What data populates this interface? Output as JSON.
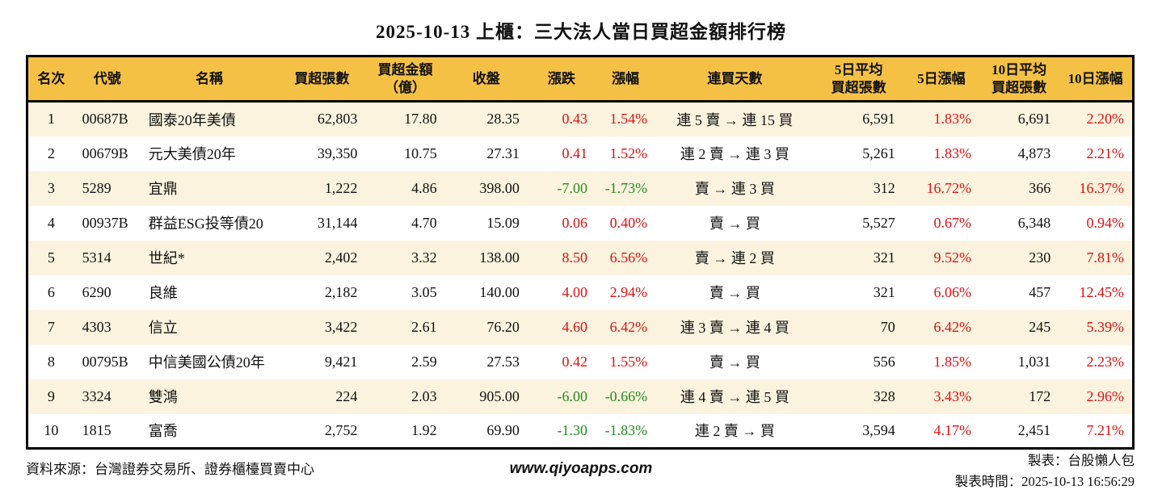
{
  "title": "2025-10-13 上櫃：三大法人當日買超金額排行榜",
  "colors": {
    "header_bg": "#F5C144",
    "row_alt_bg": "#FCF3DE",
    "up_red": "#DD1111",
    "down_green": "#1E8E1E",
    "border": "#000000"
  },
  "table": {
    "columns": [
      {
        "key": "rank",
        "label": "名次",
        "align": "center",
        "width": 58,
        "signed": false
      },
      {
        "key": "code",
        "label": "代號",
        "align": "left",
        "width": 82,
        "signed": false
      },
      {
        "key": "name",
        "label": "名稱",
        "align": "left",
        "width": 170,
        "signed": false
      },
      {
        "key": "volume",
        "label": "買超張數",
        "align": "right",
        "width": 108,
        "signed": false
      },
      {
        "key": "amount",
        "label": "買超金額\n（億）",
        "align": "right",
        "width": 98,
        "signed": false
      },
      {
        "key": "close",
        "label": "收盤",
        "align": "right",
        "width": 102,
        "signed": false
      },
      {
        "key": "change",
        "label": "漲跌",
        "align": "right",
        "width": 84,
        "signed": true
      },
      {
        "key": "change_pct",
        "label": "漲幅",
        "align": "right",
        "width": 74,
        "signed": true
      },
      {
        "key": "streak",
        "label": "連買天數",
        "align": "center",
        "width": 196,
        "signed": false
      },
      {
        "key": "avg5",
        "label": "5日平均\n買超張數",
        "align": "right",
        "width": 110,
        "signed": false
      },
      {
        "key": "pct5",
        "label": "5日漲幅",
        "align": "right",
        "width": 94,
        "signed": true
      },
      {
        "key": "avg10",
        "label": "10日平均\n買超張數",
        "align": "right",
        "width": 98,
        "signed": false
      },
      {
        "key": "pct10",
        "label": "10日漲幅",
        "align": "right",
        "width": 92,
        "signed": true
      }
    ],
    "rows": [
      {
        "rank": "1",
        "code": "00687B",
        "name": "國泰20年美債",
        "volume": "62,803",
        "amount": "17.80",
        "close": "28.35",
        "change": "0.43",
        "change_pct": "1.54%",
        "streak": "連 5 賣 → 連 15 買",
        "avg5": "6,591",
        "pct5": "1.83%",
        "avg10": "6,691",
        "pct10": "2.20%"
      },
      {
        "rank": "2",
        "code": "00679B",
        "name": "元大美債20年",
        "volume": "39,350",
        "amount": "10.75",
        "close": "27.31",
        "change": "0.41",
        "change_pct": "1.52%",
        "streak": "連 2 賣 → 連 3 買",
        "avg5": "5,261",
        "pct5": "1.83%",
        "avg10": "4,873",
        "pct10": "2.21%"
      },
      {
        "rank": "3",
        "code": "5289",
        "name": "宜鼎",
        "volume": "1,222",
        "amount": "4.86",
        "close": "398.00",
        "change": "-7.00",
        "change_pct": "-1.73%",
        "streak": "賣 → 連 3 買",
        "avg5": "312",
        "pct5": "16.72%",
        "avg10": "366",
        "pct10": "16.37%"
      },
      {
        "rank": "4",
        "code": "00937B",
        "name": "群益ESG投等債20",
        "volume": "31,144",
        "amount": "4.70",
        "close": "15.09",
        "change": "0.06",
        "change_pct": "0.40%",
        "streak": "賣 → 買",
        "avg5": "5,527",
        "pct5": "0.67%",
        "avg10": "6,348",
        "pct10": "0.94%"
      },
      {
        "rank": "5",
        "code": "5314",
        "name": "世紀*",
        "volume": "2,402",
        "amount": "3.32",
        "close": "138.00",
        "change": "8.50",
        "change_pct": "6.56%",
        "streak": "賣 → 連 2 買",
        "avg5": "321",
        "pct5": "9.52%",
        "avg10": "230",
        "pct10": "7.81%"
      },
      {
        "rank": "6",
        "code": "6290",
        "name": "良維",
        "volume": "2,182",
        "amount": "3.05",
        "close": "140.00",
        "change": "4.00",
        "change_pct": "2.94%",
        "streak": "賣 → 買",
        "avg5": "321",
        "pct5": "6.06%",
        "avg10": "457",
        "pct10": "12.45%"
      },
      {
        "rank": "7",
        "code": "4303",
        "name": "信立",
        "volume": "3,422",
        "amount": "2.61",
        "close": "76.20",
        "change": "4.60",
        "change_pct": "6.42%",
        "streak": "連 3 賣 → 連 4 買",
        "avg5": "70",
        "pct5": "6.42%",
        "avg10": "245",
        "pct10": "5.39%"
      },
      {
        "rank": "8",
        "code": "00795B",
        "name": "中信美國公債20年",
        "volume": "9,421",
        "amount": "2.59",
        "close": "27.53",
        "change": "0.42",
        "change_pct": "1.55%",
        "streak": "賣 → 買",
        "avg5": "556",
        "pct5": "1.85%",
        "avg10": "1,031",
        "pct10": "2.23%"
      },
      {
        "rank": "9",
        "code": "3324",
        "name": "雙鴻",
        "volume": "224",
        "amount": "2.03",
        "close": "905.00",
        "change": "-6.00",
        "change_pct": "-0.66%",
        "streak": "連 4 賣 → 連 5 買",
        "avg5": "328",
        "pct5": "3.43%",
        "avg10": "172",
        "pct10": "2.96%"
      },
      {
        "rank": "10",
        "code": "1815",
        "name": "富喬",
        "volume": "2,752",
        "amount": "1.92",
        "close": "69.90",
        "change": "-1.30",
        "change_pct": "-1.83%",
        "streak": "連 2 賣 → 買",
        "avg5": "3,594",
        "pct5": "4.17%",
        "avg10": "2,451",
        "pct10": "7.21%"
      }
    ]
  },
  "footer": {
    "source": "資料來源：台灣證券交易所、證券櫃檯買賣中心",
    "website": "www.qiyoapps.com",
    "maker": "製表：台股懶人包",
    "made_time": "製表時間：2025-10-13 16:56:29"
  }
}
